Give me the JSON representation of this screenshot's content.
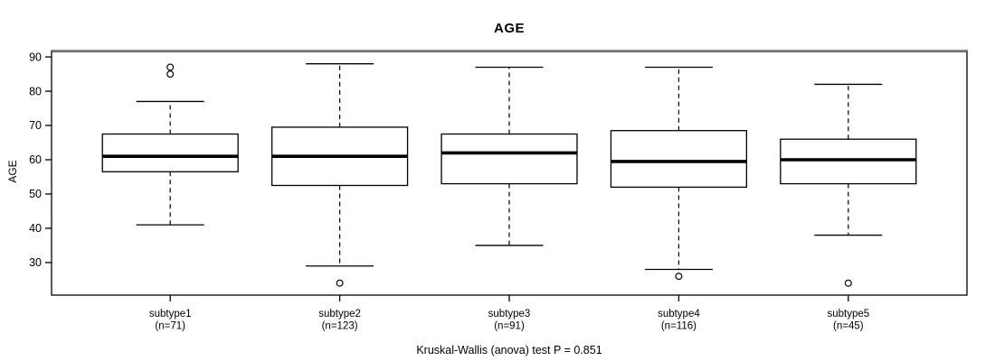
{
  "figure": {
    "title": "AGE",
    "ylabel": "AGE",
    "caption": "Kruskal-Wallis (anova) test P = 0.851"
  },
  "chart_data": {
    "type": "box",
    "title": "AGE",
    "xlabel": "",
    "ylabel": "AGE",
    "caption": "Kruskal-Wallis (anova) test P = 0.851",
    "legend": "none",
    "grid": false,
    "ylim": [
      20.5,
      91.6
    ],
    "yticks": [
      30,
      40,
      50,
      60,
      70,
      80,
      90
    ],
    "categories": [
      {
        "label": "subtype1",
        "sublabel": "(n=71)",
        "n": 71,
        "whisker_low": 41,
        "q1": 56.5,
        "median": 61,
        "q3": 67.5,
        "whisker_high": 77,
        "outliers": [
          87,
          85
        ]
      },
      {
        "label": "subtype2",
        "sublabel": "(n=123)",
        "n": 123,
        "whisker_low": 29,
        "q1": 52.5,
        "median": 61,
        "q3": 69.5,
        "whisker_high": 88,
        "outliers": [
          24
        ]
      },
      {
        "label": "subtype3",
        "sublabel": "(n=91)",
        "n": 91,
        "whisker_low": 35,
        "q1": 53,
        "median": 62,
        "q3": 67.5,
        "whisker_high": 87,
        "outliers": []
      },
      {
        "label": "subtype4",
        "sublabel": "(n=116)",
        "n": 116,
        "whisker_low": 28,
        "q1": 52,
        "median": 59.5,
        "q3": 68.5,
        "whisker_high": 87,
        "outliers": [
          26
        ]
      },
      {
        "label": "subtype5",
        "sublabel": "(n=45)",
        "n": 45,
        "whisker_low": 38,
        "q1": 53,
        "median": 60,
        "q3": 66,
        "whisker_high": 82,
        "outliers": [
          24
        ]
      }
    ]
  },
  "colors": {
    "line": "#000000",
    "box_fill": "#ffffff",
    "background": "#ffffff",
    "border_top_shadow": "#8a8a8a"
  }
}
